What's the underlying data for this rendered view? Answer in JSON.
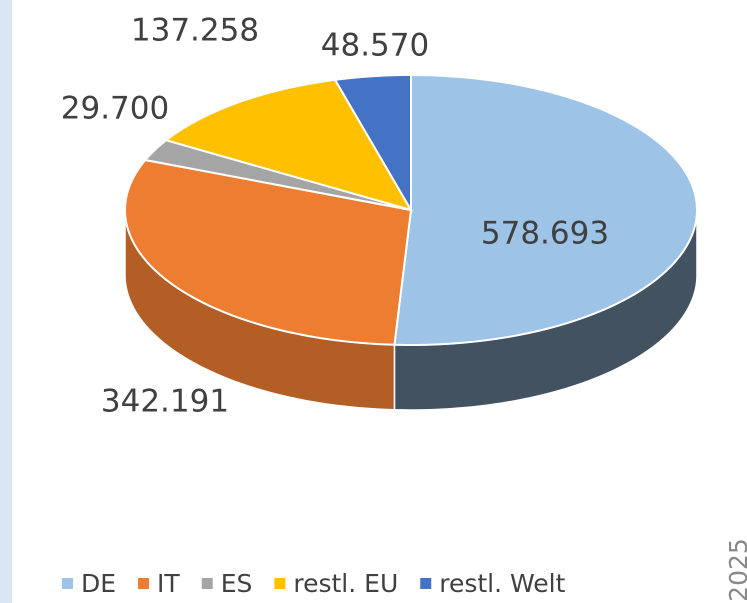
{
  "chart_data": {
    "type": "pie",
    "categories": [
      "DE",
      "IT",
      "ES",
      "restl. EU",
      "restl. Welt"
    ],
    "values": [
      578693,
      342191,
      29700,
      137258,
      48570
    ],
    "value_labels": [
      "578.693",
      "342.191",
      "29.700",
      "137.258",
      "48.570"
    ],
    "colors": [
      "#9dc3e6",
      "#ed7d31",
      "#a5a5a5",
      "#ffc000",
      "#4472c4"
    ],
    "side_text": "2025"
  }
}
